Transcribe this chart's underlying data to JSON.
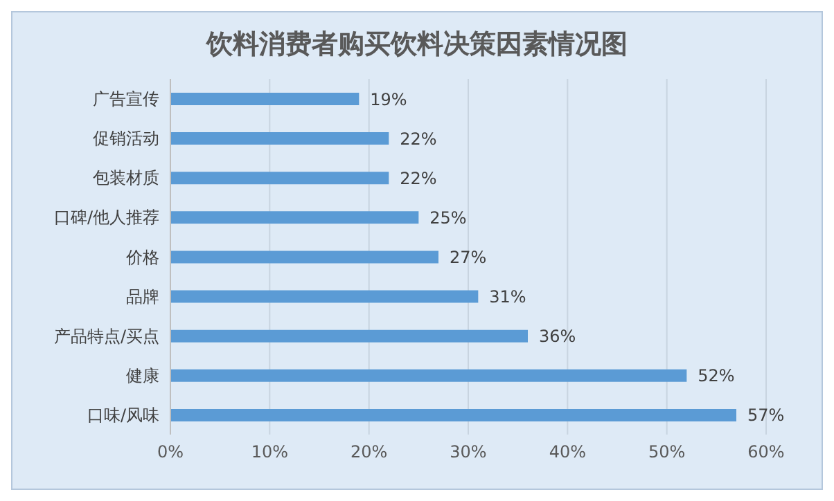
{
  "chart_data": {
    "type": "bar",
    "orientation": "horizontal",
    "title": "饮料消费者购买饮料决策因素情况图",
    "categories": [
      "广告宣传",
      "促销活动",
      "包装材质",
      "口碑/他人推荐",
      "价格",
      "品牌",
      "产品特点/买点",
      "健康",
      "口味/风味"
    ],
    "values": [
      19,
      22,
      22,
      25,
      27,
      31,
      36,
      52,
      57
    ],
    "value_labels": [
      "19%",
      "22%",
      "22%",
      "25%",
      "27%",
      "31%",
      "36%",
      "52%",
      "57%"
    ],
    "color": "#5b9bd5",
    "xlim": [
      0,
      60
    ],
    "xticks": [
      {
        "value": 0,
        "label": "0%"
      },
      {
        "value": 10,
        "label": "10%"
      },
      {
        "value": 20,
        "label": "20%"
      },
      {
        "value": 30,
        "label": "30%"
      },
      {
        "value": 40,
        "label": "40%"
      },
      {
        "value": 50,
        "label": "50%"
      },
      {
        "value": 60,
        "label": "60%"
      }
    ],
    "grid": "x"
  }
}
